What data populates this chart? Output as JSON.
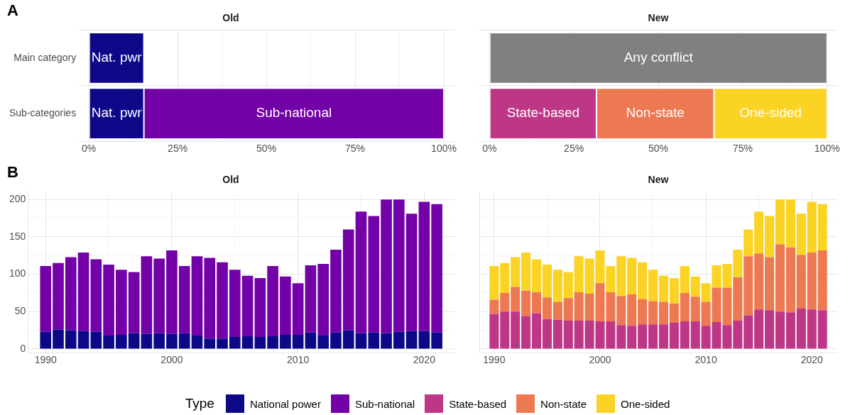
{
  "chart_data": [
    {
      "type": "bar",
      "orientation": "horizontal",
      "stacked": true,
      "title": "Old",
      "annotations": [
        "A"
      ],
      "categories": [
        "Main category",
        "Sub-categories"
      ],
      "grid": true,
      "xlim": [
        -3,
        103
      ],
      "xticks": [
        {
          "value": 0,
          "label": "0%"
        },
        {
          "value": 12.5,
          "label": null
        },
        {
          "value": 25,
          "label": "25%"
        },
        {
          "value": 37.5,
          "label": null
        },
        {
          "value": 50,
          "label": "50%"
        },
        {
          "value": 62.5,
          "label": null
        },
        {
          "value": 75,
          "label": "75%"
        },
        {
          "value": 87.5,
          "label": null
        },
        {
          "value": 100,
          "label": "100%"
        }
      ],
      "series": [
        {
          "color": "#0d0887",
          "values": [
            15.5,
            15.5
          ],
          "value_labels": [
            "Nat. pwr",
            "Nat. pwr"
          ]
        },
        {
          "color": "#7201a8",
          "values": [
            null,
            84.5
          ],
          "value_labels": [
            null,
            "Sub-national"
          ]
        }
      ]
    },
    {
      "type": "bar",
      "orientation": "horizontal",
      "stacked": true,
      "title": "New",
      "grid": true,
      "tick_labels": "x",
      "xlim": [
        -3,
        103
      ],
      "xticks": [
        {
          "value": 0,
          "label": "0%"
        },
        {
          "value": 12.5,
          "label": null
        },
        {
          "value": 25,
          "label": "25%"
        },
        {
          "value": 37.5,
          "label": null
        },
        {
          "value": 50,
          "label": "50%"
        },
        {
          "value": 62.5,
          "label": null
        },
        {
          "value": 75,
          "label": "75%"
        },
        {
          "value": 87.5,
          "label": null
        },
        {
          "value": 100,
          "label": "100%"
        }
      ],
      "series": [
        {
          "color": "#808080",
          "values": [
            100,
            null
          ],
          "value_labels": [
            "Any conflict",
            null
          ]
        },
        {
          "color": "#bd3786",
          "values": [
            null,
            31.7
          ],
          "value_labels": [
            null,
            "State-based"
          ]
        },
        {
          "color": "#ed7953",
          "values": [
            null,
            34.8
          ],
          "value_labels": [
            null,
            "Non-state"
          ]
        },
        {
          "color": "#fbd324",
          "values": [
            null,
            33.5
          ],
          "value_labels": [
            null,
            "One-sided"
          ]
        }
      ]
    },
    {
      "type": "bar",
      "stacked": true,
      "title": "Old",
      "annotations": [
        "B"
      ],
      "grid": true,
      "legend": "bottom",
      "legend_title": "Type",
      "x": [
        1990,
        1991,
        1992,
        1993,
        1994,
        1995,
        1996,
        1997,
        1998,
        1999,
        2000,
        2001,
        2002,
        2003,
        2004,
        2005,
        2006,
        2007,
        2008,
        2009,
        2010,
        2011,
        2012,
        2013,
        2014,
        2015,
        2016,
        2017,
        2018,
        2019,
        2020,
        2021
      ],
      "xlim": [
        1988.6,
        2022.4
      ],
      "xticks": [
        1990,
        {
          "value": 1995,
          "label": null
        },
        2000,
        {
          "value": 2005,
          "label": null
        },
        2010,
        {
          "value": 2015,
          "label": null
        },
        2020
      ],
      "ylim": [
        -5,
        210
      ],
      "yticks": [
        0,
        {
          "value": 25,
          "label": null
        },
        50,
        {
          "value": 75,
          "label": null
        },
        100,
        {
          "value": 125,
          "label": null
        },
        150,
        {
          "value": 175,
          "label": null
        },
        200
      ],
      "series": [
        {
          "name": "National power",
          "color": "#0d0887",
          "values": [
            23,
            26,
            25,
            24,
            23,
            18,
            19,
            21,
            20,
            21,
            20,
            21,
            18,
            14,
            14,
            16,
            17,
            16,
            17,
            19,
            19,
            22,
            18,
            22,
            25,
            21,
            22,
            21,
            23,
            24,
            24,
            22
          ]
        },
        {
          "name": "Sub-national",
          "color": "#7201a8",
          "values": [
            88,
            89,
            98,
            105,
            97,
            95,
            87,
            82,
            104,
            100,
            112,
            90,
            106,
            108,
            102,
            90,
            81,
            79,
            94,
            78,
            69,
            90,
            96,
            111,
            135,
            163,
            156,
            179,
            177,
            157,
            173,
            172
          ]
        }
      ]
    },
    {
      "type": "bar",
      "stacked": true,
      "title": "New",
      "grid": true,
      "legend": "bottom",
      "tick_labels": "x",
      "x": [
        1990,
        1991,
        1992,
        1993,
        1994,
        1995,
        1996,
        1997,
        1998,
        1999,
        2000,
        2001,
        2002,
        2003,
        2004,
        2005,
        2006,
        2007,
        2008,
        2009,
        2010,
        2011,
        2012,
        2013,
        2014,
        2015,
        2016,
        2017,
        2018,
        2019,
        2020,
        2021
      ],
      "xlim": [
        1988.6,
        2022.4
      ],
      "xticks": [
        1990,
        {
          "value": 1995,
          "label": null
        },
        2000,
        {
          "value": 2005,
          "label": null
        },
        2010,
        {
          "value": 2015,
          "label": null
        },
        2020
      ],
      "ylim": [
        -5,
        210
      ],
      "yticks": [
        0,
        {
          "value": 25,
          "label": null
        },
        50,
        {
          "value": 75,
          "label": null
        },
        100,
        {
          "value": 125,
          "label": null
        },
        150,
        {
          "value": 175,
          "label": null
        },
        200
      ],
      "series": [
        {
          "name": "State-based",
          "color": "#bd3786",
          "values": [
            47,
            50,
            50,
            44,
            48,
            40,
            39,
            38,
            38,
            38,
            37,
            37,
            32,
            31,
            33,
            33,
            33,
            35,
            37,
            37,
            31,
            36,
            32,
            38,
            45,
            53,
            52,
            50,
            49,
            54,
            53,
            52
          ]
        },
        {
          "name": "Non-state",
          "color": "#ed7953",
          "values": [
            19,
            25,
            33,
            34,
            28,
            29,
            24,
            30,
            38,
            36,
            51,
            39,
            39,
            42,
            34,
            31,
            30,
            26,
            38,
            33,
            32,
            46,
            50,
            58,
            79,
            75,
            71,
            90,
            87,
            72,
            76,
            80
          ]
        },
        {
          "name": "One-sided",
          "color": "#fbd324",
          "values": [
            45,
            40,
            40,
            51,
            44,
            44,
            43,
            35,
            48,
            47,
            44,
            35,
            53,
            49,
            49,
            42,
            35,
            34,
            36,
            27,
            25,
            30,
            32,
            37,
            36,
            56,
            55,
            60,
            64,
            55,
            68,
            62
          ]
        }
      ]
    }
  ]
}
